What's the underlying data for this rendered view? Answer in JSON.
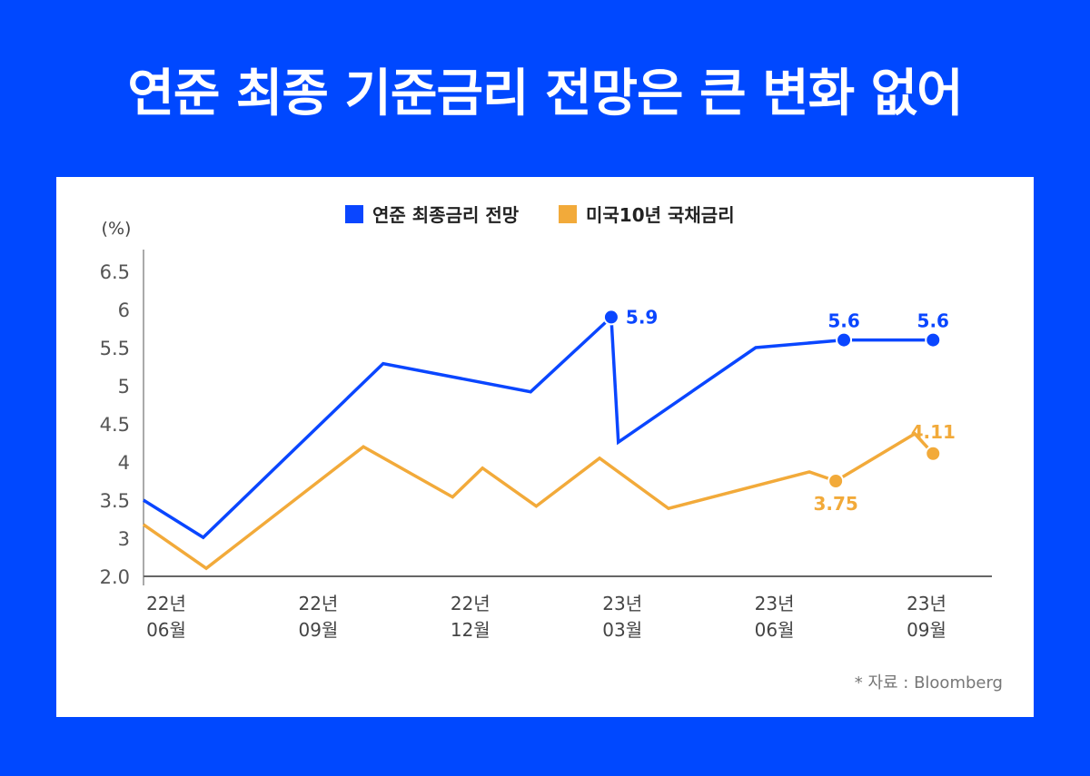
{
  "title": "연준 최종 기준금리 전망은 큰 변화 없어",
  "source": "* 자료 : Bloomberg",
  "colors": {
    "fed": "#0a46ff",
    "treasury": "#f2aa3a",
    "background": "#0048ff"
  },
  "chart_data": {
    "type": "line",
    "title": "연준 최종 기준금리 전망은 큰 변화 없어",
    "ylabel": "(%)",
    "xlabel": "",
    "legend_position": "top-center",
    "y_ticks": [
      "6.5",
      "6",
      "5.5",
      "5",
      "4.5",
      "4",
      "3.5",
      "3",
      "2.0"
    ],
    "y_tick_values": [
      6.5,
      6,
      5.5,
      5,
      4.5,
      4,
      3.5,
      3,
      2.0
    ],
    "x_ticks": [
      {
        "month_index": 0,
        "line1": "22년",
        "line2": "06월"
      },
      {
        "month_index": 3,
        "line1": "22년",
        "line2": "09월"
      },
      {
        "month_index": 6,
        "line1": "22년",
        "line2": "12월"
      },
      {
        "month_index": 9,
        "line1": "23년",
        "line2": "03월"
      },
      {
        "month_index": 12,
        "line1": "23년",
        "line2": "06월"
      },
      {
        "month_index": 15,
        "line1": "23년",
        "line2": "09월"
      }
    ],
    "x_range": [
      -0.45,
      16.2
    ],
    "series": [
      {
        "name": "연준 최종금리 전망",
        "key": "fed",
        "x": [
          -0.45,
          0.73,
          4.28,
          7.19,
          8.78,
          8.92,
          11.63,
          13.37,
          15.13
        ],
        "y": [
          3.5,
          3.01,
          5.29,
          4.92,
          5.9,
          4.26,
          5.5,
          5.6,
          5.6
        ],
        "labels": [
          {
            "index": 4,
            "text": "5.9",
            "pos": "right"
          },
          {
            "index": 7,
            "text": "5.6",
            "pos": "top"
          },
          {
            "index": 8,
            "text": "5.6",
            "pos": "top"
          }
        ]
      },
      {
        "name": "미국10년 국채금리",
        "key": "treasury",
        "x": [
          -0.45,
          0.79,
          3.89,
          5.65,
          6.24,
          7.3,
          8.55,
          9.91,
          12.69,
          13.21,
          14.77,
          15.13
        ],
        "y": [
          3.18,
          2.21,
          4.2,
          3.54,
          3.92,
          3.42,
          4.05,
          3.39,
          3.87,
          3.75,
          4.37,
          4.11
        ],
        "labels": [
          {
            "index": 9,
            "text": "3.75",
            "pos": "bottom"
          },
          {
            "index": 11,
            "text": "4.11",
            "pos": "top"
          }
        ]
      }
    ]
  }
}
